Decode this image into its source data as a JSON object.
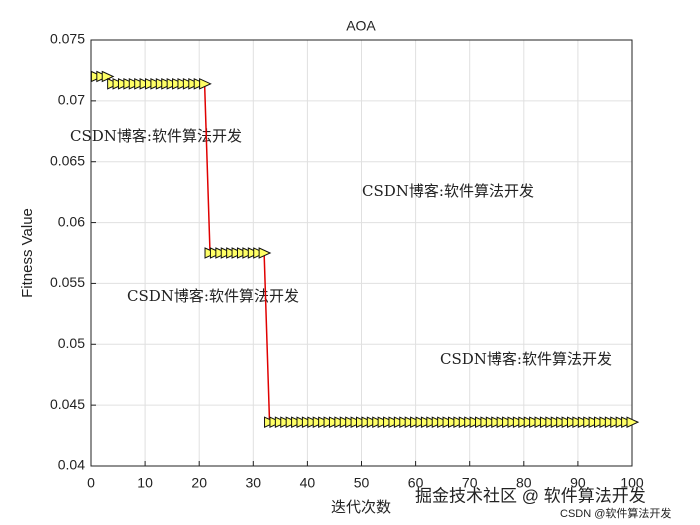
{
  "chart_data": {
    "type": "line",
    "title": "AOA",
    "x_label": "迭代次数",
    "y_label": "Fitness Value",
    "x": [
      1,
      2,
      3,
      4,
      5,
      6,
      7,
      8,
      9,
      10,
      11,
      12,
      13,
      14,
      15,
      16,
      17,
      18,
      19,
      20,
      21,
      22,
      23,
      24,
      25,
      26,
      27,
      28,
      29,
      30,
      31,
      32,
      33,
      34,
      35,
      36,
      37,
      38,
      39,
      40,
      41,
      42,
      43,
      44,
      45,
      46,
      47,
      48,
      49,
      50,
      51,
      52,
      53,
      54,
      55,
      56,
      57,
      58,
      59,
      60,
      61,
      62,
      63,
      64,
      65,
      66,
      67,
      68,
      69,
      70,
      71,
      72,
      73,
      74,
      75,
      76,
      77,
      78,
      79,
      80,
      81,
      82,
      83,
      84,
      85,
      86,
      87,
      88,
      89,
      90,
      91,
      92,
      93,
      94,
      95,
      96,
      97,
      98,
      99,
      100
    ],
    "series": [
      {
        "color": "#e00000",
        "marker_color": "#ffff66",
        "values": [
          0.072,
          0.072,
          0.072,
          0.0714,
          0.0714,
          0.0714,
          0.0714,
          0.0714,
          0.0714,
          0.0714,
          0.0714,
          0.0714,
          0.0714,
          0.0714,
          0.0714,
          0.0714,
          0.0714,
          0.0714,
          0.0714,
          0.0714,
          0.0714,
          0.0575,
          0.0575,
          0.0575,
          0.0575,
          0.0575,
          0.0575,
          0.0575,
          0.0575,
          0.0575,
          0.0575,
          0.0575,
          0.0436,
          0.0436,
          0.0436,
          0.0436,
          0.0436,
          0.0436,
          0.0436,
          0.0436,
          0.0436,
          0.0436,
          0.0436,
          0.0436,
          0.0436,
          0.0436,
          0.0436,
          0.0436,
          0.0436,
          0.0436,
          0.0436,
          0.0436,
          0.0436,
          0.0436,
          0.0436,
          0.0436,
          0.0436,
          0.0436,
          0.0436,
          0.0436,
          0.0436,
          0.0436,
          0.0436,
          0.0436,
          0.0436,
          0.0436,
          0.0436,
          0.0436,
          0.0436,
          0.0436,
          0.0436,
          0.0436,
          0.0436,
          0.0436,
          0.0436,
          0.0436,
          0.0436,
          0.0436,
          0.0436,
          0.0436,
          0.0436,
          0.0436,
          0.0436,
          0.0436,
          0.0436,
          0.0436,
          0.0436,
          0.0436,
          0.0436,
          0.0436,
          0.0436,
          0.0436,
          0.0436,
          0.0436,
          0.0436,
          0.0436,
          0.0436,
          0.0436,
          0.0436,
          0.0436
        ]
      }
    ],
    "xlim": [
      0,
      100
    ],
    "xticks": [
      0,
      10,
      20,
      30,
      40,
      50,
      60,
      70,
      80,
      90,
      100
    ],
    "ylim": [
      0.04,
      0.075
    ],
    "yticks": [
      0.04,
      0.045,
      0.05,
      0.055,
      0.06,
      0.065,
      0.07,
      0.075
    ],
    "grid": true,
    "annotations": [
      {
        "text": "CSDN博客:软件算法开发",
        "color": "#e88888"
      },
      {
        "text": "CSDN博客:软件算法开发",
        "color": "#7777dd"
      },
      {
        "text": "CSDN博客:软件算法开发",
        "color": "#eecc66"
      },
      {
        "text": "CSDN博客:软件算法开发",
        "color": "#bbbbbb"
      }
    ],
    "footer": [
      "掘金技术社区 @ 软件算法开发",
      "CSDN @软件算法开发"
    ]
  }
}
